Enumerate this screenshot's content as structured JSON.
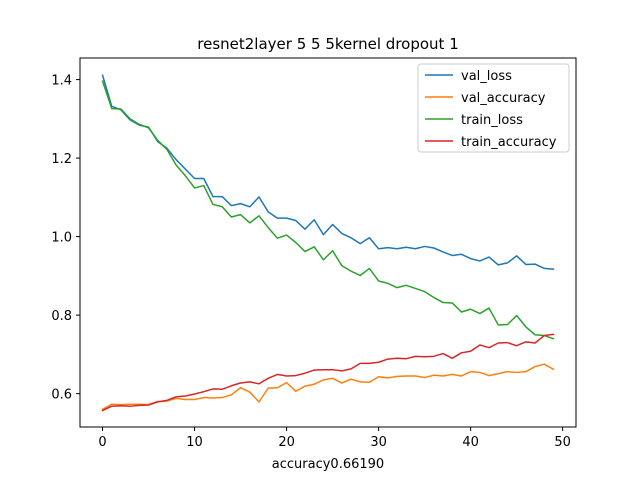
{
  "chart_data": {
    "type": "line",
    "title": "resnet2layer  5 5 5kernel dropout 1",
    "xlabel": "accuracy0.66190",
    "ylabel": "",
    "xlim": [
      -2.45,
      51.45
    ],
    "ylim": [
      0.515,
      1.455
    ],
    "xticks": [
      0,
      10,
      20,
      30,
      40,
      50
    ],
    "yticks": [
      0.6,
      0.8,
      1.0,
      1.2,
      1.4
    ],
    "ytick_labels": [
      "0.6",
      "0.8",
      "1.0",
      "1.2",
      "1.4"
    ],
    "grid": false,
    "legend_position": "top-right",
    "x": [
      0,
      1,
      2,
      3,
      4,
      5,
      6,
      7,
      8,
      9,
      10,
      11,
      12,
      13,
      14,
      15,
      16,
      17,
      18,
      19,
      20,
      21,
      22,
      23,
      24,
      25,
      26,
      27,
      28,
      29,
      30,
      31,
      32,
      33,
      34,
      35,
      36,
      37,
      38,
      39,
      40,
      41,
      42,
      43,
      44,
      45,
      46,
      47,
      48,
      49
    ],
    "series": [
      {
        "name": "val_loss",
        "color": "#1f77b4",
        "values": [
          1.411,
          1.332,
          1.323,
          1.297,
          1.284,
          1.279,
          1.242,
          1.225,
          1.196,
          1.172,
          1.148,
          1.148,
          1.102,
          1.102,
          1.079,
          1.084,
          1.076,
          1.101,
          1.063,
          1.047,
          1.047,
          1.041,
          1.019,
          1.043,
          1.005,
          1.031,
          1.008,
          0.997,
          0.982,
          0.997,
          0.969,
          0.972,
          0.969,
          0.973,
          0.969,
          0.975,
          0.971,
          0.961,
          0.952,
          0.955,
          0.944,
          0.938,
          0.948,
          0.928,
          0.933,
          0.951,
          0.929,
          0.93,
          0.919,
          0.917
        ]
      },
      {
        "name": "val_accuracy",
        "color": "#ff7f0e",
        "values": [
          0.56,
          0.573,
          0.572,
          0.573,
          0.573,
          0.572,
          0.58,
          0.581,
          0.588,
          0.585,
          0.585,
          0.59,
          0.589,
          0.59,
          0.597,
          0.615,
          0.604,
          0.579,
          0.614,
          0.615,
          0.628,
          0.606,
          0.619,
          0.624,
          0.635,
          0.639,
          0.627,
          0.637,
          0.63,
          0.629,
          0.643,
          0.64,
          0.644,
          0.645,
          0.645,
          0.641,
          0.647,
          0.645,
          0.649,
          0.645,
          0.656,
          0.654,
          0.646,
          0.651,
          0.656,
          0.654,
          0.656,
          0.669,
          0.675,
          0.662
        ]
      },
      {
        "name": "train_loss",
        "color": "#2ca02c",
        "values": [
          1.396,
          1.326,
          1.325,
          1.3,
          1.286,
          1.277,
          1.245,
          1.222,
          1.182,
          1.155,
          1.124,
          1.13,
          1.082,
          1.076,
          1.05,
          1.056,
          1.035,
          1.053,
          1.023,
          0.996,
          1.004,
          0.985,
          0.962,
          0.974,
          0.941,
          0.964,
          0.926,
          0.912,
          0.901,
          0.919,
          0.887,
          0.881,
          0.87,
          0.876,
          0.868,
          0.86,
          0.845,
          0.832,
          0.831,
          0.808,
          0.815,
          0.804,
          0.818,
          0.775,
          0.776,
          0.799,
          0.77,
          0.75,
          0.748,
          0.74
        ]
      },
      {
        "name": "train_accuracy",
        "color": "#d62728",
        "values": [
          0.557,
          0.568,
          0.569,
          0.568,
          0.57,
          0.571,
          0.579,
          0.583,
          0.592,
          0.594,
          0.599,
          0.605,
          0.612,
          0.611,
          0.62,
          0.627,
          0.63,
          0.625,
          0.639,
          0.649,
          0.645,
          0.646,
          0.652,
          0.66,
          0.661,
          0.661,
          0.658,
          0.663,
          0.677,
          0.677,
          0.68,
          0.688,
          0.69,
          0.689,
          0.695,
          0.694,
          0.695,
          0.702,
          0.69,
          0.704,
          0.708,
          0.724,
          0.717,
          0.729,
          0.73,
          0.722,
          0.732,
          0.729,
          0.748,
          0.751
        ]
      }
    ]
  }
}
